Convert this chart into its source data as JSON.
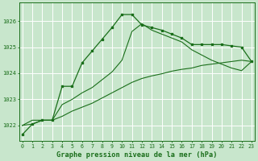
{
  "bg_color": "#c8e6cc",
  "grid_color": "#ffffff",
  "line_color": "#1a6e1a",
  "title": "Graphe pression niveau de la mer (hPa)",
  "hours": [
    0,
    1,
    2,
    3,
    4,
    5,
    6,
    7,
    8,
    9,
    10,
    11,
    12,
    13,
    14,
    15,
    16,
    17,
    18,
    19,
    20,
    21,
    22,
    23
  ],
  "ylim": [
    1021.4,
    1026.7
  ],
  "yticks": [
    1022,
    1023,
    1024,
    1025,
    1026
  ],
  "series1": [
    1021.65,
    1022.05,
    1022.2,
    1022.2,
    1023.5,
    1023.5,
    1024.4,
    1024.85,
    1025.3,
    1025.75,
    1026.25,
    1026.25,
    1025.85,
    1025.75,
    1025.65,
    1025.5,
    1025.35,
    1025.1,
    1025.1,
    1025.1,
    1025.1,
    1025.05,
    1025.0,
    1024.45
  ],
  "series2": [
    1022.0,
    1022.2,
    1022.2,
    1022.2,
    1022.8,
    1023.0,
    1023.25,
    1023.45,
    1023.75,
    1024.05,
    1024.5,
    1025.6,
    1025.9,
    1025.65,
    1025.5,
    1025.35,
    1025.2,
    1024.9,
    1024.7,
    1024.5,
    1024.35,
    1024.2,
    1024.1,
    1024.45
  ],
  "series3": [
    1022.0,
    1022.05,
    1022.2,
    1022.2,
    1022.35,
    1022.55,
    1022.7,
    1022.85,
    1023.05,
    1023.25,
    1023.45,
    1023.65,
    1023.8,
    1023.9,
    1023.98,
    1024.08,
    1024.15,
    1024.2,
    1024.3,
    1024.35,
    1024.4,
    1024.45,
    1024.5,
    1024.45
  ]
}
